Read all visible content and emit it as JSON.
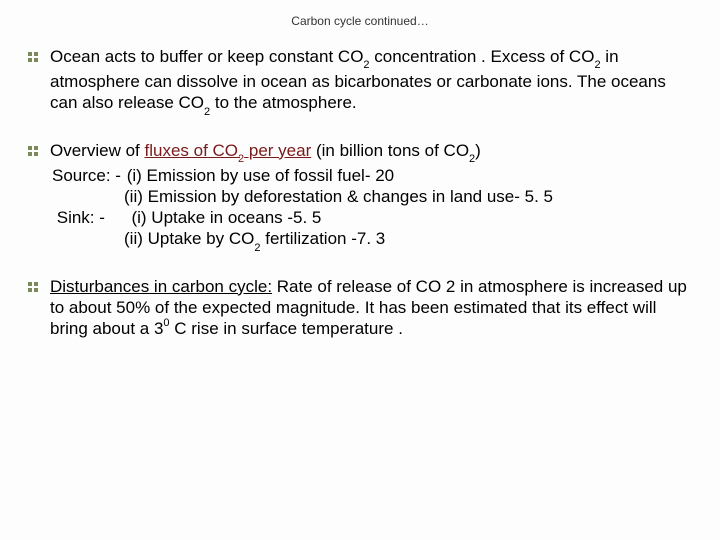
{
  "title": "Carbon cycle continued…",
  "bullets": {
    "b1": {
      "t1": "Ocean acts to buffer or keep constant CO",
      "t2": " concentration . Excess of CO",
      "t3": "   in atmosphere can dissolve in ocean as bicarbonates or carbonate ions. The oceans can also release  CO",
      "t4": "  to the atmosphere."
    },
    "b2": {
      "t1": "Overview of ",
      "flux": "fluxes of CO",
      "flux2": " per year",
      "t2": " (in billion tons of CO",
      "t3": ")",
      "src": "Source: -",
      "s1": "(i) Emission   by use of fossil fuel- 20",
      "s2": "(ii) Emission by deforestation & changes in land use- 5. 5",
      "sink": "Sink: -",
      "k1": "(i) Uptake in oceans -5. 5",
      "k2a": "(ii) Uptake by CO",
      "k2b": " fertilization -7. 3"
    },
    "b3": {
      "d1": "Disturbances in carbon cycle:",
      "t1": " Rate of release of CO 2 in atmosphere is increased up to about 50% of the expected magnitude. It has been estimated that its effect will bring about a 3",
      "t2": " C rise in  surface temperature ."
    }
  },
  "sub2": "2",
  "sup0": "0"
}
